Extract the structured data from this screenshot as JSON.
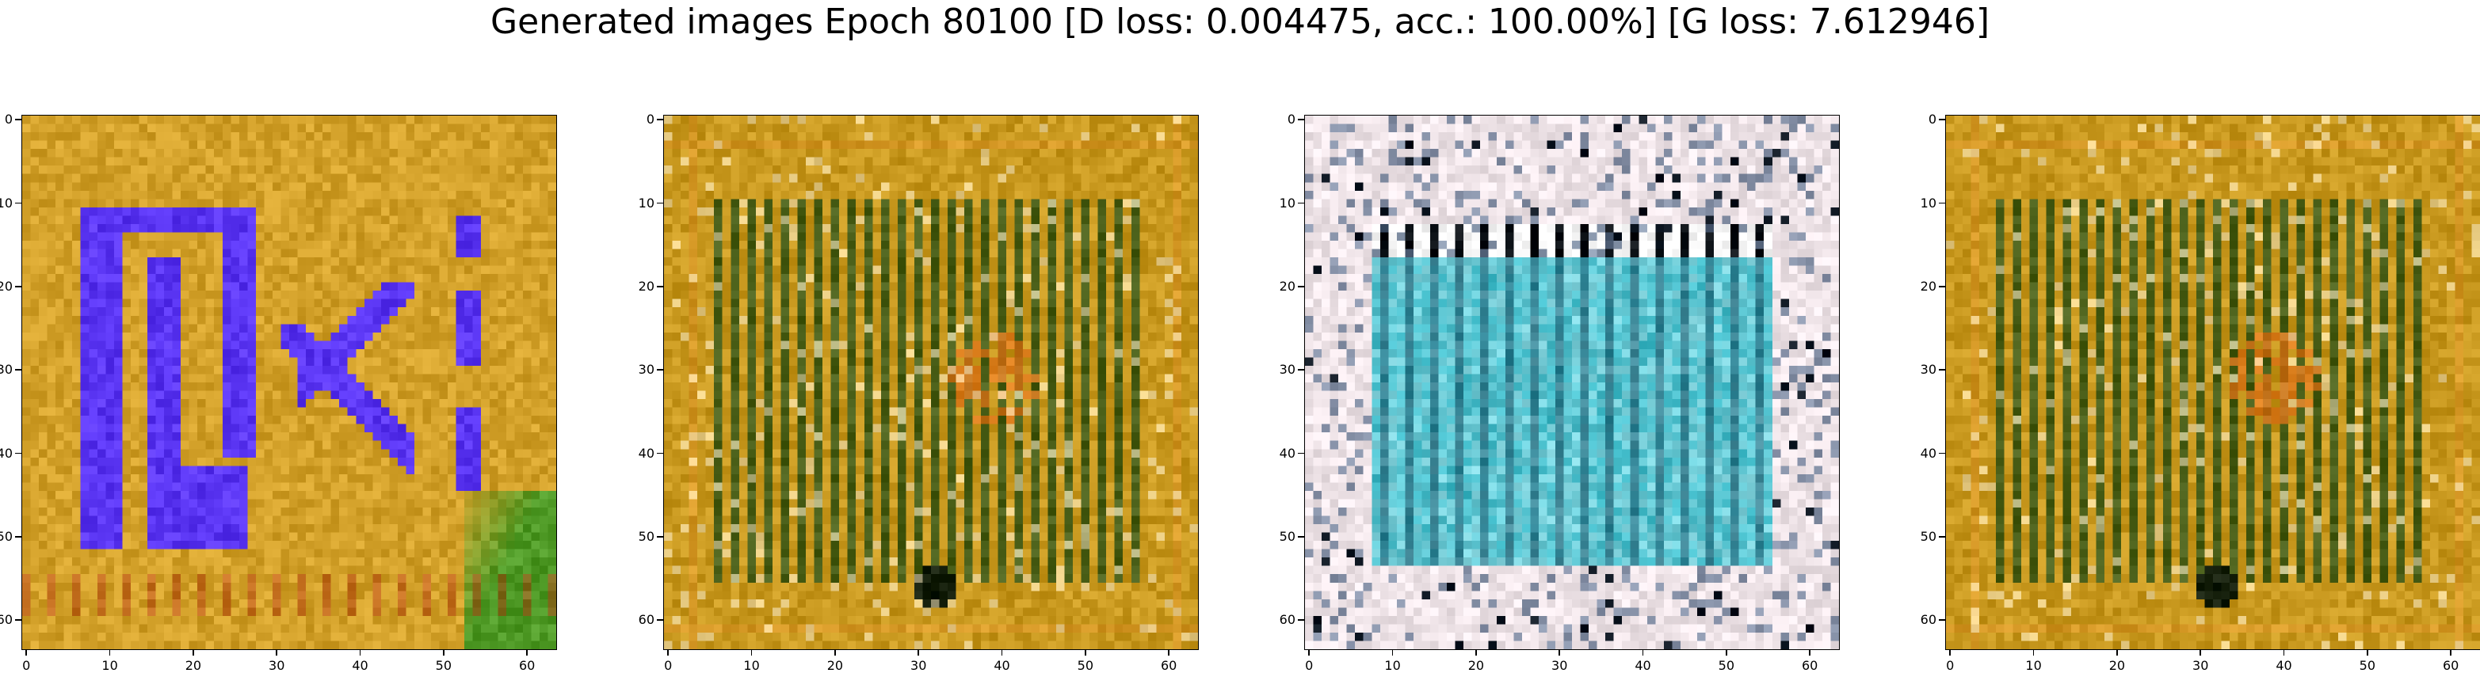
{
  "figure": {
    "title": "Generated images Epoch 80100 [D loss: 0.004475, acc.: 100.00%] [G loss: 7.612946]"
  },
  "axes": {
    "x_ticks": [
      "0",
      "10",
      "20",
      "30",
      "40",
      "50",
      "60"
    ],
    "y_ticks": [
      "0",
      "10",
      "20",
      "30",
      "40",
      "50",
      "60"
    ],
    "range": [
      0,
      64
    ]
  },
  "panels": [
    {
      "id": "sample-1",
      "style": "blue-glyph",
      "colors": {
        "base": "#d3a12a",
        "accent": "#5a35f2",
        "edge": "#4f9a26"
      }
    },
    {
      "id": "sample-2",
      "style": "grid-stripes",
      "colors": {
        "base": "#c8981e",
        "accent": "#1f4b16",
        "edge": "#e0781c"
      }
    },
    {
      "id": "sample-3",
      "style": "teal-panel",
      "colors": {
        "base": "#efe4e8",
        "accent": "#3cb8c6",
        "edge": "#0c1520"
      }
    },
    {
      "id": "sample-4",
      "style": "grid-stripes",
      "colors": {
        "base": "#c8981e",
        "accent": "#1f4b16",
        "edge": "#e0781c"
      }
    }
  ]
}
